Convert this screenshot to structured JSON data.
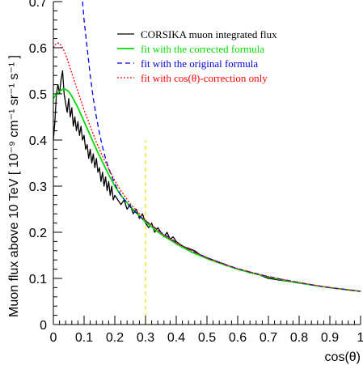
{
  "chart_data": {
    "type": "line",
    "title": "",
    "xlabel": "cos(θ)",
    "ylabel": "Muon flux above 10 TeV [ 10⁻⁹ cm⁻¹ sr⁻¹ s⁻¹ ]",
    "xlim": [
      0,
      1
    ],
    "ylim": [
      0,
      0.7
    ],
    "x_ticks": [
      "0",
      "0.1",
      "0.2",
      "0.3",
      "0.4",
      "0.5",
      "0.6",
      "0.7",
      "0.8",
      "0.9",
      "1"
    ],
    "y_ticks": [
      "0",
      "0.1",
      "0.2",
      "0.3",
      "0.4",
      "0.5",
      "0.6",
      "0.7"
    ],
    "grid": false,
    "legend_position": "top-right",
    "vertical_marker": {
      "x": 0.3,
      "color": "#e6e600",
      "style": "dashed"
    },
    "series": [
      {
        "name": "CORSIKA muon integrated flux",
        "color": "#000000",
        "style": "solid",
        "x": [
          0.0,
          0.005,
          0.01,
          0.015,
          0.02,
          0.025,
          0.03,
          0.035,
          0.04,
          0.045,
          0.05,
          0.055,
          0.06,
          0.065,
          0.07,
          0.075,
          0.08,
          0.085,
          0.09,
          0.095,
          0.1,
          0.105,
          0.11,
          0.115,
          0.12,
          0.125,
          0.13,
          0.135,
          0.14,
          0.145,
          0.15,
          0.155,
          0.16,
          0.165,
          0.17,
          0.175,
          0.18,
          0.185,
          0.19,
          0.195,
          0.2,
          0.21,
          0.22,
          0.23,
          0.24,
          0.25,
          0.26,
          0.27,
          0.28,
          0.29,
          0.3,
          0.31,
          0.32,
          0.33,
          0.34,
          0.35,
          0.36,
          0.37,
          0.38,
          0.39,
          0.4,
          0.42,
          0.44,
          0.46,
          0.48,
          0.5,
          0.52,
          0.54,
          0.56,
          0.58,
          0.6,
          0.62,
          0.64,
          0.66,
          0.68,
          0.7,
          0.72,
          0.74,
          0.76,
          0.78,
          0.8,
          0.82,
          0.84,
          0.86,
          0.88,
          0.9,
          0.92,
          0.94,
          0.96,
          0.98,
          1.0
        ],
        "values": [
          0.4,
          0.44,
          0.5,
          0.52,
          0.5,
          0.53,
          0.55,
          0.5,
          0.48,
          0.46,
          0.49,
          0.45,
          0.47,
          0.43,
          0.45,
          0.42,
          0.44,
          0.41,
          0.43,
          0.4,
          0.41,
          0.38,
          0.39,
          0.36,
          0.38,
          0.35,
          0.37,
          0.34,
          0.36,
          0.33,
          0.34,
          0.31,
          0.33,
          0.3,
          0.32,
          0.29,
          0.31,
          0.28,
          0.3,
          0.27,
          0.28,
          0.27,
          0.26,
          0.27,
          0.25,
          0.26,
          0.24,
          0.25,
          0.23,
          0.24,
          0.22,
          0.21,
          0.22,
          0.2,
          0.21,
          0.2,
          0.19,
          0.2,
          0.185,
          0.19,
          0.18,
          0.17,
          0.165,
          0.16,
          0.15,
          0.145,
          0.14,
          0.135,
          0.13,
          0.125,
          0.12,
          0.117,
          0.112,
          0.11,
          0.105,
          0.1,
          0.098,
          0.096,
          0.094,
          0.092,
          0.09,
          0.088,
          0.086,
          0.084,
          0.082,
          0.08,
          0.078,
          0.077,
          0.075,
          0.074,
          0.072
        ]
      },
      {
        "name": "fit with the corrected formula",
        "color": "#00dd00",
        "style": "solid",
        "x": [
          0.0,
          0.01,
          0.02,
          0.03,
          0.04,
          0.05,
          0.06,
          0.08,
          0.1,
          0.12,
          0.14,
          0.16,
          0.18,
          0.2,
          0.22,
          0.25,
          0.3,
          0.35,
          0.4,
          0.45,
          0.5,
          0.55,
          0.6,
          0.65,
          0.7,
          0.75,
          0.8,
          0.85,
          0.9,
          0.95,
          1.0
        ],
        "values": [
          0.49,
          0.5,
          0.505,
          0.51,
          0.51,
          0.505,
          0.495,
          0.47,
          0.44,
          0.41,
          0.38,
          0.352,
          0.325,
          0.3,
          0.28,
          0.256,
          0.222,
          0.196,
          0.175,
          0.157,
          0.143,
          0.131,
          0.12,
          0.111,
          0.103,
          0.096,
          0.09,
          0.085,
          0.08,
          0.076,
          0.072
        ]
      },
      {
        "name": "fit with the original formula",
        "color": "#0000dd",
        "style": "dashed",
        "x": [
          0.095,
          0.1,
          0.11,
          0.12,
          0.13,
          0.14,
          0.15,
          0.16,
          0.17,
          0.18,
          0.2,
          0.22,
          0.25,
          0.28,
          0.3,
          0.35,
          0.4,
          0.45,
          0.5,
          0.55,
          0.6,
          0.65,
          0.7,
          0.75,
          0.8,
          0.85,
          0.9,
          0.95,
          1.0
        ],
        "values": [
          0.7,
          0.66,
          0.6,
          0.54,
          0.49,
          0.45,
          0.415,
          0.385,
          0.36,
          0.338,
          0.305,
          0.28,
          0.255,
          0.235,
          0.225,
          0.2,
          0.178,
          0.16,
          0.145,
          0.132,
          0.121,
          0.112,
          0.104,
          0.097,
          0.091,
          0.085,
          0.08,
          0.076,
          0.072
        ]
      },
      {
        "name": "fit with cos(θ)-correction only",
        "color": "#ff0000",
        "style": "dotted",
        "x": [
          0.0,
          0.01,
          0.02,
          0.03,
          0.04,
          0.05,
          0.06,
          0.08,
          0.1,
          0.12,
          0.14,
          0.16,
          0.18,
          0.2,
          0.22,
          0.25,
          0.3,
          0.35,
          0.4,
          0.5,
          0.6,
          0.7,
          0.8,
          0.9,
          1.0
        ],
        "values": [
          0.6,
          0.61,
          0.61,
          0.6,
          0.585,
          0.565,
          0.545,
          0.505,
          0.465,
          0.43,
          0.395,
          0.365,
          0.338,
          0.312,
          0.29,
          0.262,
          0.226,
          0.199,
          0.177,
          0.144,
          0.121,
          0.104,
          0.091,
          0.08,
          0.072
        ]
      }
    ]
  }
}
